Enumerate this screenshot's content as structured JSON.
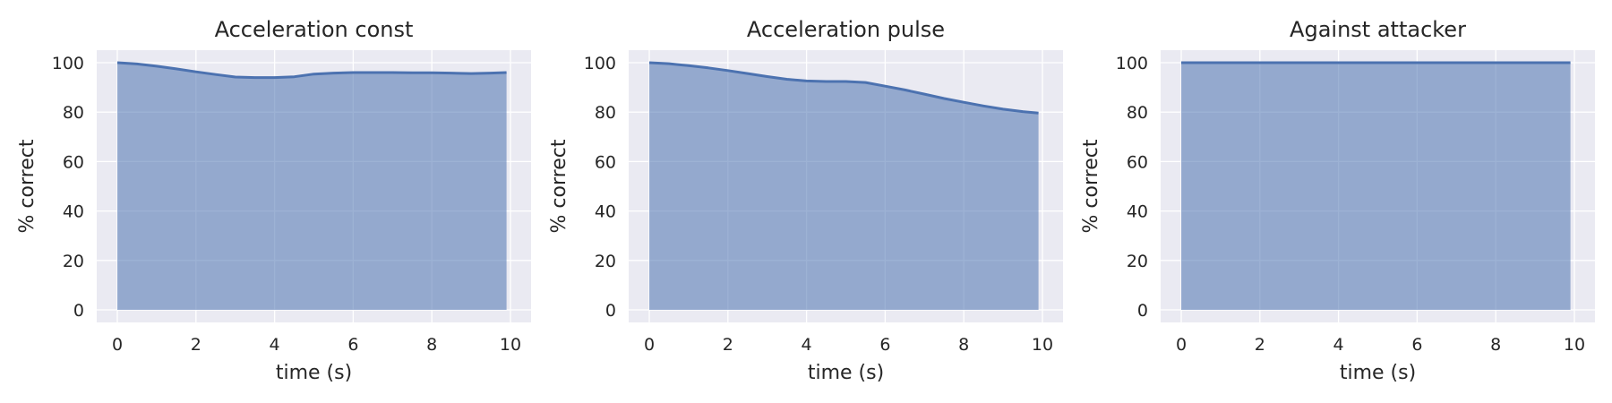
{
  "figure": {
    "background": "#ffffff"
  },
  "style": {
    "panel_bg": "#eaeaf2",
    "line_color": "#4c72b0",
    "fill_color": "#4c72b0",
    "fill_alpha": 0.55
  },
  "chart_data": [
    {
      "type": "area",
      "title": "Acceleration const",
      "xlabel": "time (s)",
      "ylabel": "% correct",
      "xlim": [
        0,
        10
      ],
      "ylim": [
        0,
        100
      ],
      "grid": true,
      "xticks": [
        0,
        2,
        4,
        6,
        8,
        10
      ],
      "yticks": [
        0,
        20,
        40,
        60,
        80,
        100
      ],
      "x": [
        0,
        0.5,
        1,
        1.5,
        2,
        2.5,
        3,
        3.5,
        4,
        4.5,
        5,
        5.5,
        6,
        6.5,
        7,
        7.5,
        8,
        8.5,
        9,
        9.5,
        9.9
      ],
      "y": [
        100,
        99.5,
        98.6,
        97.5,
        96.3,
        95.2,
        94.2,
        94,
        94,
        94.3,
        95.4,
        95.8,
        96,
        96,
        96,
        95.9,
        95.9,
        95.8,
        95.6,
        95.8,
        96
      ]
    },
    {
      "type": "area",
      "title": "Acceleration pulse",
      "xlabel": "time (s)",
      "ylabel": "% correct",
      "xlim": [
        0,
        10
      ],
      "ylim": [
        0,
        100
      ],
      "grid": true,
      "xticks": [
        0,
        2,
        4,
        6,
        8,
        10
      ],
      "yticks": [
        0,
        20,
        40,
        60,
        80,
        100
      ],
      "x": [
        0,
        0.5,
        1,
        1.5,
        2,
        2.5,
        3,
        3.5,
        4,
        4.5,
        5,
        5.5,
        6,
        6.5,
        7,
        7.5,
        8,
        8.5,
        9,
        9.5,
        9.9
      ],
      "y": [
        100,
        99.6,
        98.8,
        97.9,
        96.8,
        95.6,
        94.4,
        93.3,
        92.6,
        92.4,
        92.4,
        92,
        90.5,
        89,
        87.3,
        85.5,
        84,
        82.5,
        81.2,
        80.2,
        79.6
      ]
    },
    {
      "type": "area",
      "title": "Against attacker",
      "xlabel": "time (s)",
      "ylabel": "% correct",
      "xlim": [
        0,
        10
      ],
      "ylim": [
        0,
        100
      ],
      "grid": true,
      "xticks": [
        0,
        2,
        4,
        6,
        8,
        10
      ],
      "yticks": [
        0,
        20,
        40,
        60,
        80,
        100
      ],
      "x": [
        0,
        1,
        2,
        3,
        4,
        5,
        6,
        7,
        8,
        9,
        9.9
      ],
      "y": [
        100,
        100,
        100,
        100,
        100,
        100,
        100,
        100,
        100,
        100,
        100
      ]
    }
  ]
}
